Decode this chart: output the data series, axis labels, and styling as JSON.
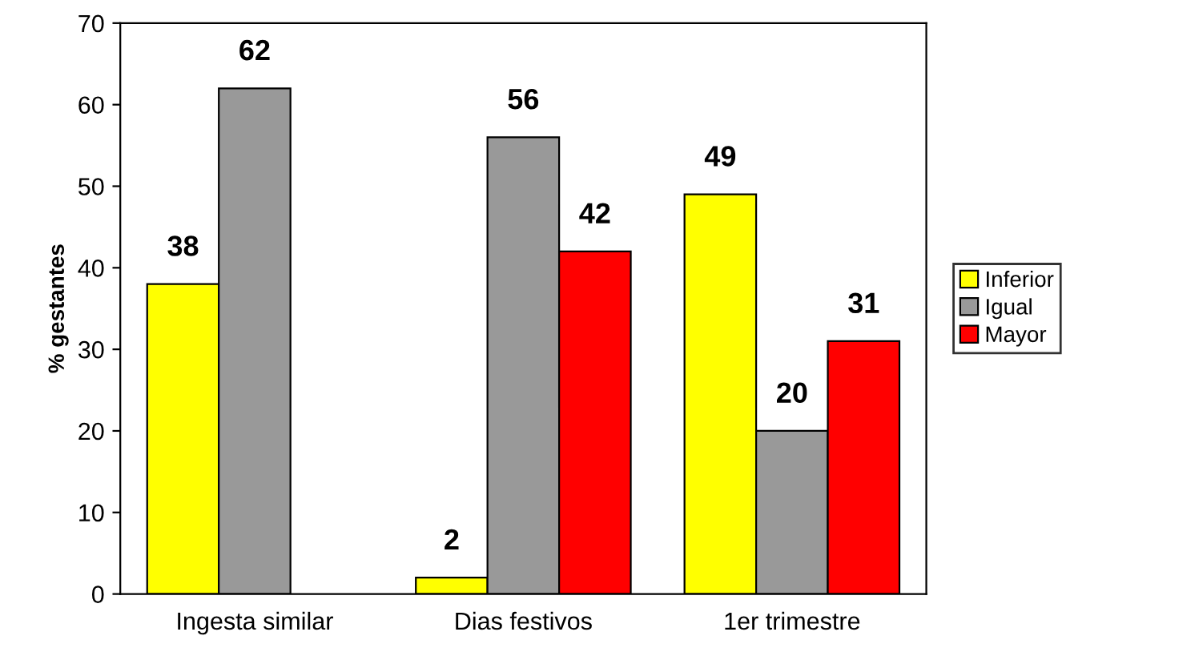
{
  "chart_data": {
    "type": "bar",
    "ylabel": "% gestantes",
    "categories": [
      "Ingesta similar",
      "Dias festivos",
      "1er trimestre"
    ],
    "series": [
      {
        "name": "Inferior",
        "color": "#ffff00",
        "values": [
          38,
          2,
          49
        ]
      },
      {
        "name": "Igual",
        "color": "#999999",
        "values": [
          62,
          56,
          20
        ]
      },
      {
        "name": "Mayor",
        "color": "#ff0000",
        "values": [
          null,
          42,
          31
        ]
      }
    ],
    "ylim": [
      0,
      70
    ],
    "yticks": [
      0,
      10,
      20,
      30,
      40,
      50,
      60,
      70
    ],
    "data_labels": true,
    "legend": "right",
    "grid": false
  }
}
